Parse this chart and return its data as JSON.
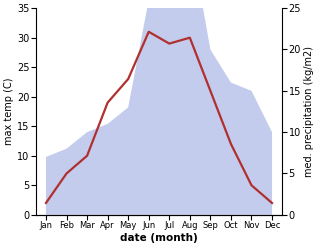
{
  "months": [
    "Jan",
    "Feb",
    "Mar",
    "Apr",
    "May",
    "Jun",
    "Jul",
    "Aug",
    "Sep",
    "Oct",
    "Nov",
    "Dec"
  ],
  "temperature": [
    2,
    7,
    10,
    19,
    23,
    31,
    29,
    30,
    21,
    12,
    5,
    2
  ],
  "precipitation": [
    7,
    8,
    10,
    11,
    13,
    26,
    34,
    34,
    20,
    16,
    15,
    10
  ],
  "temp_color": "#b03030",
  "precip_color": "#b0bce8",
  "ylim_left": [
    0,
    35
  ],
  "ylim_right": [
    0,
    25
  ],
  "yticks_left": [
    0,
    5,
    10,
    15,
    20,
    25,
    30,
    35
  ],
  "yticks_right": [
    0,
    5,
    10,
    15,
    20,
    25
  ],
  "ylabel_left": "max temp (C)",
  "ylabel_right": "med. precipitation (kg/m2)",
  "xlabel": "date (month)",
  "bg_color": "#ffffff",
  "line_width": 1.6,
  "precip_alpha": 0.75
}
